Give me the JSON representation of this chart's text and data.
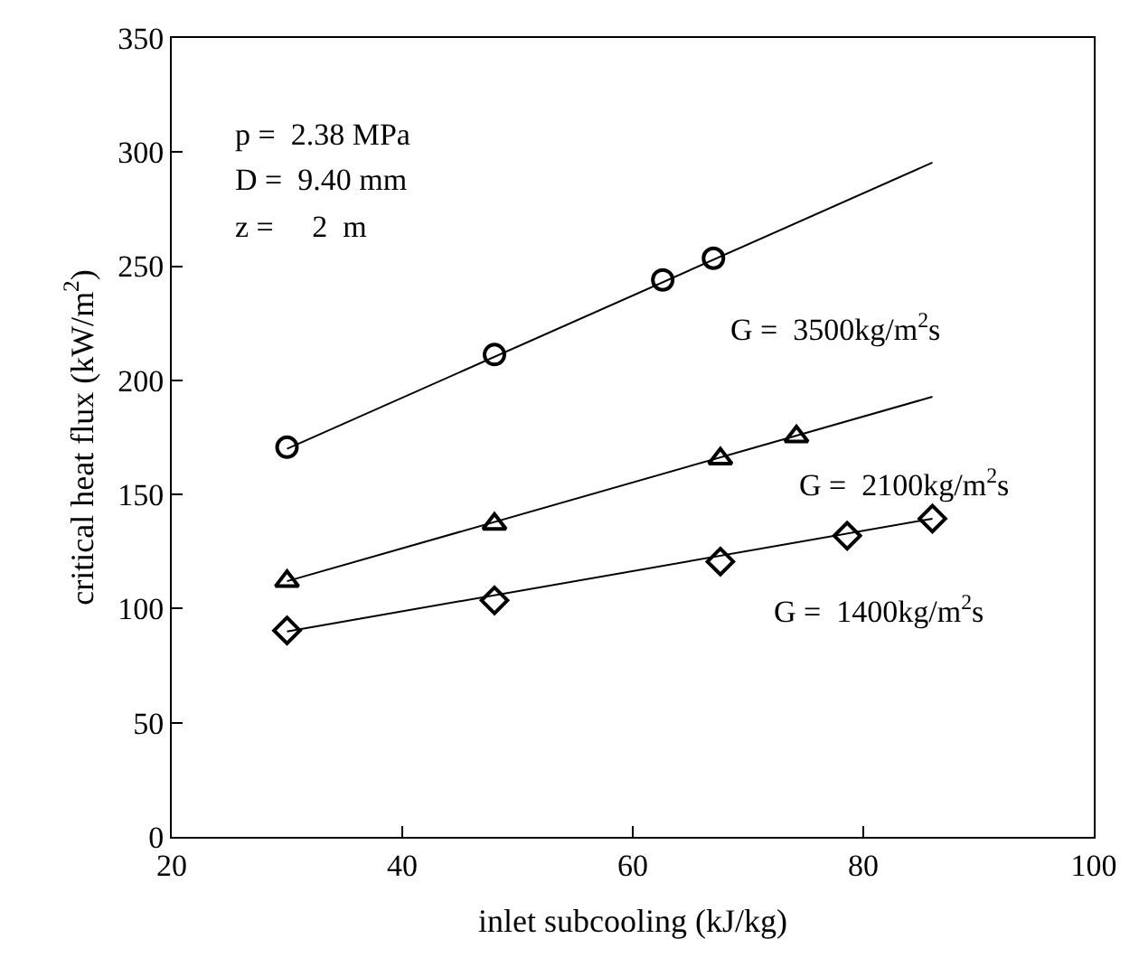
{
  "chart_data": {
    "type": "scatter",
    "xlabel": "inlet subcooling (kJ/kg)",
    "ylabel": "critical heat flux (kW/m$^{2}$)",
    "xlim": [
      20,
      100
    ],
    "xticks": [
      20,
      40,
      60,
      80,
      100
    ],
    "ylim": [
      0,
      350
    ],
    "yticks": [
      0,
      50,
      100,
      150,
      200,
      250,
      300,
      350
    ],
    "series": [
      {
        "marker": "circle",
        "color": "#000000",
        "x": [
          30,
          48,
          62.6,
          67
        ],
        "values": [
          170.7,
          211.3,
          244,
          253.5
        ]
      },
      {
        "marker": "triangle",
        "color": "#000000",
        "x": [
          30,
          48,
          67.6,
          74.2
        ],
        "values": [
          112,
          137.1,
          165.7,
          175.4
        ]
      },
      {
        "marker": "diamond",
        "color": "#000000",
        "x": [
          30,
          48,
          67.6,
          78.6,
          86
        ],
        "values": [
          90.4,
          103.6,
          120.6,
          131.9,
          139.4
        ]
      },
      {
        "type": "line",
        "marker": "none",
        "line_style": "solid",
        "color": "#000000",
        "x": [
          30,
          86
        ],
        "values": [
          170,
          295.4
        ]
      },
      {
        "type": "line",
        "marker": "none",
        "line_style": "solid",
        "color": "#000000",
        "x": [
          30,
          86
        ],
        "values": [
          112,
          192.8
        ]
      },
      {
        "type": "line",
        "marker": "none",
        "line_style": "solid",
        "color": "#000000",
        "x": [
          30,
          86
        ],
        "values": [
          90,
          139.4
        ]
      }
    ],
    "annotations": [
      "p =  2.38 MPa",
      "D =  9.40 mm",
      "z =     2  m",
      "G =  3500kg/m$^{2}$s",
      "G =  2100kg/m$^{2}$s",
      "G =  1400kg/m$^{2}$s"
    ]
  }
}
